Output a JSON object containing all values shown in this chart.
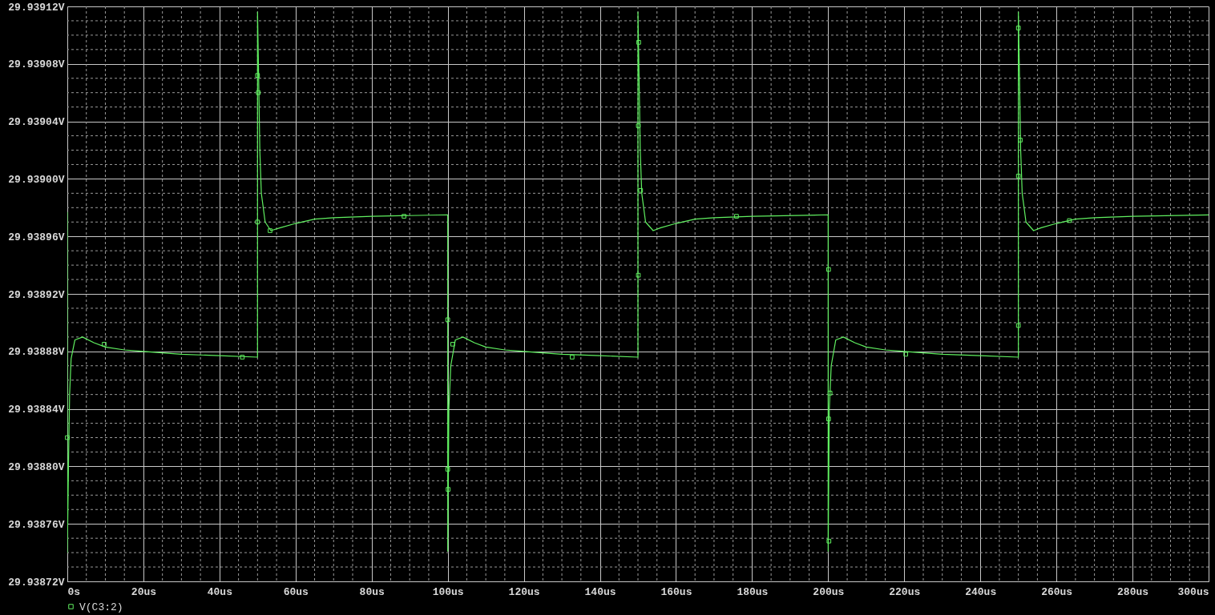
{
  "chart_data": {
    "type": "line",
    "grid": true,
    "legend": "bottom left",
    "xlim": [
      0,
      300
    ],
    "ylim": [
      29.93872,
      29.93912
    ],
    "xticks": [
      {
        "value": 0,
        "label": "0s"
      },
      {
        "value": 5,
        "label": null
      },
      {
        "value": 10,
        "label": null
      },
      {
        "value": 15,
        "label": null
      },
      {
        "value": 20,
        "label": "20us"
      },
      {
        "value": 25,
        "label": null
      },
      {
        "value": 30,
        "label": null
      },
      {
        "value": 35,
        "label": null
      },
      {
        "value": 40,
        "label": "40us"
      },
      {
        "value": 45,
        "label": null
      },
      {
        "value": 50,
        "label": null
      },
      {
        "value": 55,
        "label": null
      },
      {
        "value": 60,
        "label": "60us"
      },
      {
        "value": 65,
        "label": null
      },
      {
        "value": 70,
        "label": null
      },
      {
        "value": 75,
        "label": null
      },
      {
        "value": 80,
        "label": "80us"
      },
      {
        "value": 85,
        "label": null
      },
      {
        "value": 90,
        "label": null
      },
      {
        "value": 95,
        "label": null
      },
      {
        "value": 100,
        "label": "100us"
      },
      {
        "value": 105,
        "label": null
      },
      {
        "value": 110,
        "label": null
      },
      {
        "value": 115,
        "label": null
      },
      {
        "value": 120,
        "label": "120us"
      },
      {
        "value": 125,
        "label": null
      },
      {
        "value": 130,
        "label": null
      },
      {
        "value": 135,
        "label": null
      },
      {
        "value": 140,
        "label": "140us"
      },
      {
        "value": 145,
        "label": null
      },
      {
        "value": 150,
        "label": null
      },
      {
        "value": 155,
        "label": null
      },
      {
        "value": 160,
        "label": "160us"
      },
      {
        "value": 165,
        "label": null
      },
      {
        "value": 170,
        "label": null
      },
      {
        "value": 175,
        "label": null
      },
      {
        "value": 180,
        "label": "180us"
      },
      {
        "value": 185,
        "label": null
      },
      {
        "value": 190,
        "label": null
      },
      {
        "value": 195,
        "label": null
      },
      {
        "value": 200,
        "label": "200us"
      },
      {
        "value": 205,
        "label": null
      },
      {
        "value": 210,
        "label": null
      },
      {
        "value": 215,
        "label": null
      },
      {
        "value": 220,
        "label": "220us"
      },
      {
        "value": 225,
        "label": null
      },
      {
        "value": 230,
        "label": null
      },
      {
        "value": 235,
        "label": null
      },
      {
        "value": 240,
        "label": "240us"
      },
      {
        "value": 245,
        "label": null
      },
      {
        "value": 250,
        "label": null
      },
      {
        "value": 255,
        "label": null
      },
      {
        "value": 260,
        "label": "260us"
      },
      {
        "value": 265,
        "label": null
      },
      {
        "value": 270,
        "label": null
      },
      {
        "value": 275,
        "label": null
      },
      {
        "value": 280,
        "label": "280us"
      },
      {
        "value": 285,
        "label": null
      },
      {
        "value": 290,
        "label": null
      },
      {
        "value": 295,
        "label": null
      },
      {
        "value": 300,
        "label": "300us"
      }
    ],
    "yticks": [
      {
        "value": 29.93872,
        "label": "29.93872V"
      },
      {
        "value": 29.93873,
        "label": null
      },
      {
        "value": 29.93874,
        "label": null
      },
      {
        "value": 29.93875,
        "label": null
      },
      {
        "value": 29.93876,
        "label": "29.93876V"
      },
      {
        "value": 29.93877,
        "label": null
      },
      {
        "value": 29.93878,
        "label": null
      },
      {
        "value": 29.93879,
        "label": null
      },
      {
        "value": 29.9388,
        "label": "29.93880V"
      },
      {
        "value": 29.93881,
        "label": null
      },
      {
        "value": 29.93882,
        "label": null
      },
      {
        "value": 29.93883,
        "label": null
      },
      {
        "value": 29.93884,
        "label": "29.93884V"
      },
      {
        "value": 29.93885,
        "label": null
      },
      {
        "value": 29.93886,
        "label": null
      },
      {
        "value": 29.93887,
        "label": null
      },
      {
        "value": 29.93888,
        "label": "29.93888V"
      },
      {
        "value": 29.93889,
        "label": null
      },
      {
        "value": 29.9389,
        "label": null
      },
      {
        "value": 29.93891,
        "label": null
      },
      {
        "value": 29.93892,
        "label": "29.93892V"
      },
      {
        "value": 29.93893,
        "label": null
      },
      {
        "value": 29.93894,
        "label": null
      },
      {
        "value": 29.93895,
        "label": null
      },
      {
        "value": 29.93896,
        "label": "29.93896V"
      },
      {
        "value": 29.93897,
        "label": null
      },
      {
        "value": 29.93898,
        "label": null
      },
      {
        "value": 29.93899,
        "label": null
      },
      {
        "value": 29.939,
        "label": "29.93900V"
      },
      {
        "value": 29.93901,
        "label": null
      },
      {
        "value": 29.93902,
        "label": null
      },
      {
        "value": 29.93903,
        "label": null
      },
      {
        "value": 29.93904,
        "label": "29.93904V"
      },
      {
        "value": 29.93905,
        "label": null
      },
      {
        "value": 29.93906,
        "label": null
      },
      {
        "value": 29.93907,
        "label": null
      },
      {
        "value": 29.93908,
        "label": "29.93908V"
      },
      {
        "value": 29.93909,
        "label": null
      },
      {
        "value": 29.9391,
        "label": null
      },
      {
        "value": 29.93911,
        "label": null
      },
      {
        "value": 29.93912,
        "label": "29.93912V"
      }
    ],
    "series": [
      {
        "name": "V(C3:2)",
        "type": "line",
        "color": "#60f060",
        "x": [
          0,
          0,
          0.3,
          0.6,
          1,
          2,
          4,
          7,
          10,
          15,
          20,
          30,
          40,
          50,
          50,
          50.3,
          50.6,
          51,
          52,
          53.5,
          56,
          60,
          65,
          70,
          80,
          100,
          100,
          100.3,
          100.8,
          102,
          104,
          107,
          110,
          115,
          120,
          130,
          140,
          150,
          150,
          150.3,
          150.6,
          151,
          152,
          154,
          156,
          160,
          165,
          170,
          180,
          200,
          200,
          200.3,
          200.8,
          202,
          204,
          207,
          210,
          215,
          220,
          230,
          240,
          250,
          250,
          250.3,
          250.6,
          251,
          252,
          254,
          256,
          260,
          265,
          270,
          280,
          300
        ],
        "values": [
          29.938977,
          29.93874,
          29.9388,
          29.93885,
          29.938875,
          29.938888,
          29.93889,
          29.938886,
          29.938883,
          29.938881,
          29.93888,
          29.938878,
          29.938877,
          29.938876,
          29.939116,
          29.93907,
          29.93902,
          29.93899,
          29.93897,
          29.938964,
          29.938966,
          29.938969,
          29.938972,
          29.938973,
          29.938974,
          29.938975,
          29.938741,
          29.93884,
          29.93887,
          29.938888,
          29.93889,
          29.938886,
          29.938883,
          29.938881,
          29.93888,
          29.938878,
          29.938877,
          29.938876,
          29.939116,
          29.93907,
          29.93902,
          29.93899,
          29.93897,
          29.938964,
          29.938966,
          29.938969,
          29.938972,
          29.938973,
          29.938974,
          29.938975,
          29.938741,
          29.93884,
          29.93887,
          29.938888,
          29.93889,
          29.938886,
          29.938883,
          29.938881,
          29.93888,
          29.938878,
          29.938877,
          29.938876,
          29.939116,
          29.93907,
          29.93902,
          29.93899,
          29.93897,
          29.938964,
          29.938966,
          29.938969,
          29.938972,
          29.938973,
          29.938974,
          29.938975
        ]
      },
      {
        "type": "scatter",
        "marker": "square",
        "color": "#60f060",
        "x": [
          0,
          9.7,
          46,
          50,
          50,
          50.2,
          53.3,
          88.5,
          100,
          101.3,
          100,
          100.1,
          132.7,
          150.2,
          150.1,
          150.7,
          150.1,
          175.9,
          200.1,
          200.5,
          200.1,
          200.2,
          250,
          250.5,
          250,
          250,
          263.4,
          220.4
        ],
        "values": [
          29.93882,
          29.938885,
          29.938876,
          29.93897,
          29.939072,
          29.93906,
          29.938964,
          29.938974,
          29.938902,
          29.938885,
          29.938798,
          29.938784,
          29.938876,
          29.939095,
          29.939037,
          29.938992,
          29.938933,
          29.938974,
          29.938937,
          29.938851,
          29.938833,
          29.938748,
          29.939105,
          29.939027,
          29.939002,
          29.938898,
          29.938971,
          29.938878
        ]
      }
    ]
  }
}
